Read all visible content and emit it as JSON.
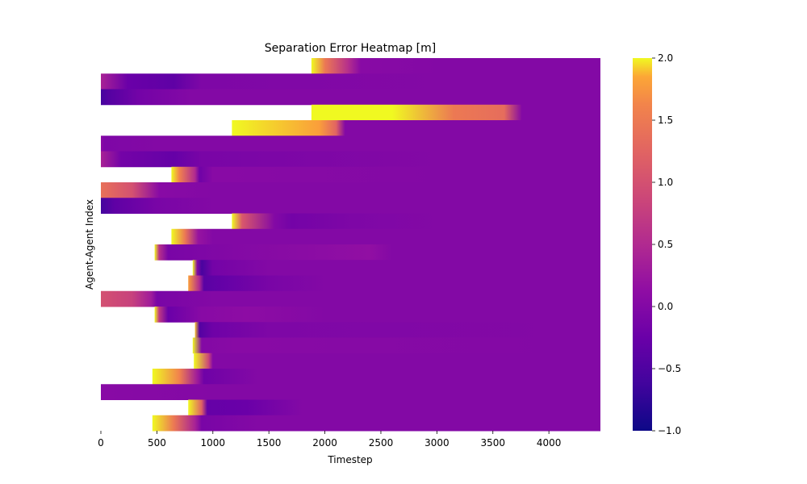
{
  "chart_data": {
    "type": "heatmap",
    "title": "Separation Error Heatmap [m]",
    "xlabel": "Timestep",
    "ylabel": "Agent-Agent Index",
    "xlim": [
      0,
      4460
    ],
    "xticks": [
      "0",
      "500",
      "1000",
      "1500",
      "2000",
      "2500",
      "3000",
      "3500",
      "4000"
    ],
    "colorbar": {
      "min": -1.0,
      "max": 2.0,
      "ticks": [
        "−1.0",
        "−0.5",
        "0.0",
        "0.5",
        "1.0",
        "1.5",
        "2.0"
      ],
      "colormap": "plasma"
    },
    "rows": [
      {
        "start": 1880,
        "segments": [
          [
            1880,
            2.0
          ],
          [
            2000,
            1.5
          ],
          [
            2200,
            0.6
          ],
          [
            2320,
            0.05
          ],
          [
            3000,
            0.0
          ]
        ]
      },
      {
        "start": 0,
        "segments": [
          [
            0,
            0.4
          ],
          [
            240,
            -0.25
          ],
          [
            650,
            -0.35
          ],
          [
            900,
            -0.05
          ],
          [
            3000,
            0.0
          ]
        ]
      },
      {
        "start": 0,
        "segments": [
          [
            0,
            -0.6
          ],
          [
            60,
            -0.45
          ],
          [
            350,
            -0.15
          ],
          [
            800,
            0.0
          ],
          [
            3000,
            0.0
          ]
        ]
      },
      {
        "start": 1880,
        "segments": [
          [
            1880,
            2.0
          ],
          [
            2600,
            2.0
          ],
          [
            3150,
            1.5
          ],
          [
            3600,
            1.35
          ],
          [
            3760,
            0.0
          ]
        ]
      },
      {
        "start": 1170,
        "segments": [
          [
            1170,
            2.0
          ],
          [
            1950,
            1.8
          ],
          [
            2100,
            1.25
          ],
          [
            2180,
            0.0
          ],
          [
            4000,
            0.0
          ]
        ]
      },
      {
        "start": 0,
        "segments": [
          [
            0,
            0.1
          ],
          [
            30,
            -0.05
          ],
          [
            500,
            0.0
          ],
          [
            4000,
            0.0
          ]
        ]
      },
      {
        "start": 0,
        "segments": [
          [
            0,
            0.4
          ],
          [
            180,
            -0.15
          ],
          [
            650,
            -0.3
          ],
          [
            900,
            -0.1
          ],
          [
            3000,
            0.0
          ]
        ]
      },
      {
        "start": 630,
        "segments": [
          [
            630,
            2.0
          ],
          [
            700,
            1.6
          ],
          [
            840,
            0.5
          ],
          [
            880,
            -0.2
          ],
          [
            1000,
            0.05
          ],
          [
            3000,
            0.0
          ]
        ]
      },
      {
        "start": 0,
        "segments": [
          [
            0,
            1.4
          ],
          [
            280,
            1.0
          ],
          [
            520,
            0.05
          ],
          [
            1000,
            0.0
          ],
          [
            4000,
            0.0
          ]
        ]
      },
      {
        "start": 0,
        "segments": [
          [
            0,
            -0.6
          ],
          [
            120,
            -0.35
          ],
          [
            500,
            -0.1
          ],
          [
            1000,
            0.0
          ],
          [
            4000,
            0.0
          ]
        ]
      },
      {
        "start": 1170,
        "segments": [
          [
            1170,
            2.0
          ],
          [
            1260,
            1.1
          ],
          [
            1550,
            0.0
          ],
          [
            1700,
            -0.15
          ],
          [
            2250,
            -0.05
          ],
          [
            3000,
            0.0
          ]
        ]
      },
      {
        "start": 630,
        "segments": [
          [
            630,
            2.0
          ],
          [
            750,
            1.5
          ],
          [
            870,
            0.2
          ],
          [
            1000,
            0.0
          ],
          [
            4000,
            0.0
          ]
        ]
      },
      {
        "start": 480,
        "segments": [
          [
            480,
            2.0
          ],
          [
            520,
            0.6
          ],
          [
            600,
            -0.1
          ],
          [
            1200,
            0.0
          ],
          [
            2400,
            0.15
          ],
          [
            2600,
            0.0
          ],
          [
            4000,
            0.0
          ]
        ]
      },
      {
        "start": 820,
        "segments": [
          [
            820,
            2.0
          ],
          [
            860,
            0.0
          ],
          [
            900,
            -0.55
          ],
          [
            1000,
            -0.15
          ],
          [
            1500,
            0.0
          ],
          [
            4000,
            0.0
          ]
        ]
      },
      {
        "start": 780,
        "segments": [
          [
            780,
            1.8
          ],
          [
            880,
            0.5
          ],
          [
            920,
            -0.4
          ],
          [
            1100,
            -0.3
          ],
          [
            1500,
            -0.1
          ],
          [
            2000,
            0.0
          ],
          [
            4000,
            0.0
          ]
        ]
      },
      {
        "start": 0,
        "segments": [
          [
            0,
            1.0
          ],
          [
            280,
            0.8
          ],
          [
            450,
            0.3
          ],
          [
            500,
            -0.1
          ],
          [
            1000,
            0.0
          ],
          [
            4000,
            0.0
          ]
        ]
      },
      {
        "start": 480,
        "segments": [
          [
            480,
            2.0
          ],
          [
            520,
            0.7
          ],
          [
            600,
            -0.25
          ],
          [
            900,
            0.05
          ],
          [
            1300,
            0.1
          ],
          [
            2000,
            0.0
          ],
          [
            4000,
            0.0
          ]
        ]
      },
      {
        "start": 840,
        "segments": [
          [
            840,
            1.9
          ],
          [
            880,
            -0.45
          ],
          [
            1000,
            -0.2
          ],
          [
            1500,
            -0.05
          ],
          [
            4000,
            0.0
          ]
        ]
      },
      {
        "start": 820,
        "segments": [
          [
            820,
            2.0
          ],
          [
            900,
            0.0
          ],
          [
            1200,
            0.05
          ],
          [
            4000,
            0.0
          ]
        ]
      },
      {
        "start": 830,
        "segments": [
          [
            830,
            2.0
          ],
          [
            960,
            0.9
          ],
          [
            1000,
            0.0
          ],
          [
            4000,
            0.0
          ]
        ]
      },
      {
        "start": 460,
        "segments": [
          [
            460,
            2.0
          ],
          [
            700,
            1.6
          ],
          [
            860,
            0.3
          ],
          [
            920,
            -0.2
          ],
          [
            1400,
            0.0
          ],
          [
            4000,
            0.0
          ]
        ]
      },
      {
        "start": 0,
        "segments": [
          [
            0,
            0.05
          ],
          [
            1000,
            0.0
          ],
          [
            4000,
            0.0
          ]
        ]
      },
      {
        "start": 780,
        "segments": [
          [
            780,
            2.0
          ],
          [
            900,
            1.2
          ],
          [
            950,
            -0.3
          ],
          [
            1300,
            -0.25
          ],
          [
            1800,
            0.0
          ],
          [
            4000,
            0.0
          ]
        ]
      },
      {
        "start": 460,
        "segments": [
          [
            460,
            2.0
          ],
          [
            650,
            1.5
          ],
          [
            840,
            0.4
          ],
          [
            900,
            -0.1
          ],
          [
            1400,
            0.0
          ],
          [
            4000,
            0.0
          ]
        ]
      }
    ]
  }
}
